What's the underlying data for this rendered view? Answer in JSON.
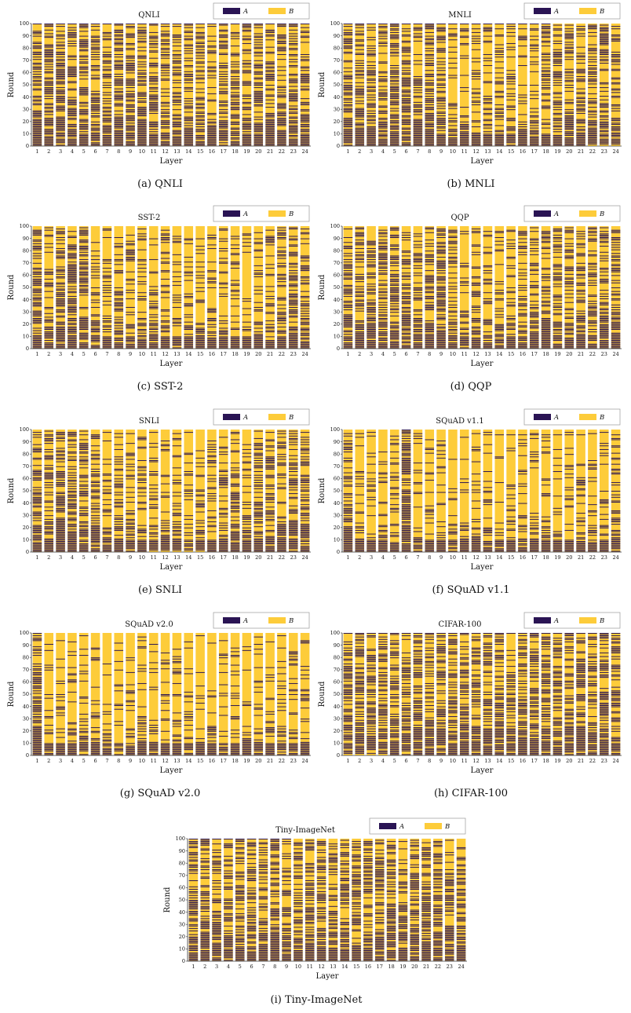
{
  "colors": {
    "A": "#2a1454",
    "B": "#fdcc3a",
    "legend_border": "#999999",
    "axis": "#333333"
  },
  "legend": {
    "a_label": "A",
    "b_label": "B"
  },
  "chart_data": [
    {
      "type": "heatmap",
      "title": "QNLI",
      "caption": "(a) QNLI",
      "xlabel": "Layer",
      "ylabel": "Round",
      "ylim": [
        0,
        100
      ],
      "yticks": [
        0,
        10,
        20,
        30,
        40,
        50,
        60,
        70,
        80,
        90,
        100
      ],
      "layers": [
        1,
        2,
        3,
        4,
        5,
        6,
        7,
        8,
        9,
        10,
        11,
        12,
        13,
        14,
        15,
        16,
        17,
        18,
        19,
        20,
        21,
        22,
        23,
        24
      ],
      "legend_position": "top-right",
      "series": [
        {
          "name": "A"
        },
        {
          "name": "B"
        }
      ],
      "a_density": [
        0.6,
        0.58,
        0.64,
        0.6,
        0.64,
        0.62,
        0.63,
        0.66,
        0.68,
        0.7,
        0.46,
        0.52,
        0.58,
        0.56,
        0.52,
        0.46,
        0.54,
        0.5,
        0.46,
        0.52,
        0.58,
        0.56,
        0.58,
        0.56
      ]
    },
    {
      "type": "heatmap",
      "title": "MNLI",
      "caption": "(b) MNLI",
      "xlabel": "Layer",
      "ylabel": "Round",
      "ylim": [
        0,
        100
      ],
      "yticks": [
        0,
        10,
        20,
        30,
        40,
        50,
        60,
        70,
        80,
        90,
        100
      ],
      "layers": [
        1,
        2,
        3,
        4,
        5,
        6,
        7,
        8,
        9,
        10,
        11,
        12,
        13,
        14,
        15,
        16,
        17,
        18,
        19,
        20,
        21,
        22,
        23,
        24
      ],
      "legend_position": "top-right",
      "series": [
        {
          "name": "A"
        },
        {
          "name": "B"
        }
      ],
      "a_density": [
        0.62,
        0.58,
        0.6,
        0.56,
        0.58,
        0.6,
        0.56,
        0.62,
        0.58,
        0.4,
        0.32,
        0.36,
        0.36,
        0.34,
        0.3,
        0.34,
        0.38,
        0.44,
        0.46,
        0.5,
        0.52,
        0.56,
        0.54,
        0.56
      ]
    },
    {
      "type": "heatmap",
      "title": "SST-2",
      "caption": "(c) SST-2",
      "xlabel": "Layer",
      "ylabel": "Round",
      "ylim": [
        0,
        100
      ],
      "yticks": [
        0,
        10,
        20,
        30,
        40,
        50,
        60,
        70,
        80,
        90,
        100
      ],
      "layers": [
        1,
        2,
        3,
        4,
        5,
        6,
        7,
        8,
        9,
        10,
        11,
        12,
        13,
        14,
        15,
        16,
        17,
        18,
        19,
        20,
        21,
        22,
        23,
        24
      ],
      "legend_position": "top-right",
      "series": [
        {
          "name": "A"
        },
        {
          "name": "B"
        }
      ],
      "a_density": [
        0.6,
        0.32,
        0.62,
        0.66,
        0.64,
        0.36,
        0.3,
        0.34,
        0.34,
        0.36,
        0.28,
        0.3,
        0.3,
        0.28,
        0.26,
        0.26,
        0.28,
        0.24,
        0.2,
        0.22,
        0.4,
        0.5,
        0.52,
        0.56
      ]
    },
    {
      "type": "heatmap",
      "title": "QQP",
      "caption": "(d) QQP",
      "xlabel": "Layer",
      "ylabel": "Round",
      "ylim": [
        0,
        100
      ],
      "yticks": [
        0,
        10,
        20,
        30,
        40,
        50,
        60,
        70,
        80,
        90,
        100
      ],
      "layers": [
        1,
        2,
        3,
        4,
        5,
        6,
        7,
        8,
        9,
        10,
        11,
        12,
        13,
        14,
        15,
        16,
        17,
        18,
        19,
        20,
        21,
        22,
        23,
        24
      ],
      "legend_position": "top-right",
      "series": [
        {
          "name": "A"
        },
        {
          "name": "B"
        }
      ],
      "a_density": [
        0.62,
        0.58,
        0.62,
        0.6,
        0.6,
        0.6,
        0.6,
        0.62,
        0.58,
        0.46,
        0.34,
        0.38,
        0.38,
        0.34,
        0.34,
        0.4,
        0.44,
        0.46,
        0.48,
        0.52,
        0.54,
        0.54,
        0.56,
        0.56
      ]
    },
    {
      "type": "heatmap",
      "title": "SNLI",
      "caption": "(e) SNLI",
      "xlabel": "Layer",
      "ylabel": "Round",
      "ylim": [
        0,
        100
      ],
      "yticks": [
        0,
        10,
        20,
        30,
        40,
        50,
        60,
        70,
        80,
        90,
        100
      ],
      "layers": [
        1,
        2,
        3,
        4,
        5,
        6,
        7,
        8,
        9,
        10,
        11,
        12,
        13,
        14,
        15,
        16,
        17,
        18,
        19,
        20,
        21,
        22,
        23,
        24
      ],
      "legend_position": "top-right",
      "series": [
        {
          "name": "A"
        },
        {
          "name": "B"
        }
      ],
      "a_density": [
        0.62,
        0.56,
        0.6,
        0.58,
        0.56,
        0.54,
        0.38,
        0.34,
        0.34,
        0.36,
        0.32,
        0.32,
        0.32,
        0.3,
        0.28,
        0.3,
        0.36,
        0.44,
        0.48,
        0.5,
        0.5,
        0.52,
        0.54,
        0.56
      ]
    },
    {
      "type": "heatmap",
      "title": "SQuAD v1.1",
      "caption": "(f) SQuAD v1.1",
      "xlabel": "Layer",
      "ylabel": "Round",
      "ylim": [
        0,
        100
      ],
      "yticks": [
        0,
        10,
        20,
        30,
        40,
        50,
        60,
        70,
        80,
        90,
        100
      ],
      "layers": [
        1,
        2,
        3,
        4,
        5,
        6,
        7,
        8,
        9,
        10,
        11,
        12,
        13,
        14,
        15,
        16,
        17,
        18,
        19,
        20,
        21,
        22,
        23,
        24
      ],
      "legend_position": "top-right",
      "series": [
        {
          "name": "A"
        },
        {
          "name": "B"
        }
      ],
      "a_density": [
        0.56,
        0.24,
        0.18,
        0.16,
        0.18,
        0.9,
        0.18,
        0.16,
        0.16,
        0.14,
        0.16,
        0.16,
        0.18,
        0.16,
        0.16,
        0.16,
        0.18,
        0.16,
        0.18,
        0.18,
        0.2,
        0.2,
        0.22,
        0.4
      ]
    },
    {
      "type": "heatmap",
      "title": "SQuAD v2.0",
      "caption": "(g) SQuAD v2.0",
      "xlabel": "Layer",
      "ylabel": "Round",
      "ylim": [
        0,
        100
      ],
      "yticks": [
        0,
        10,
        20,
        30,
        40,
        50,
        60,
        70,
        80,
        90,
        100
      ],
      "layers": [
        1,
        2,
        3,
        4,
        5,
        6,
        7,
        8,
        9,
        10,
        11,
        12,
        13,
        14,
        15,
        16,
        17,
        18,
        19,
        20,
        21,
        22,
        23,
        24
      ],
      "legend_position": "top-right",
      "series": [
        {
          "name": "A"
        },
        {
          "name": "B"
        }
      ],
      "a_density": [
        0.6,
        0.24,
        0.2,
        0.2,
        0.2,
        0.24,
        0.2,
        0.18,
        0.18,
        0.2,
        0.18,
        0.18,
        0.18,
        0.18,
        0.16,
        0.16,
        0.18,
        0.18,
        0.16,
        0.18,
        0.2,
        0.2,
        0.22,
        0.3
      ]
    },
    {
      "type": "heatmap",
      "title": "CIFAR-100",
      "caption": "(h) CIFAR-100",
      "xlabel": "Layer",
      "ylabel": "Round",
      "ylim": [
        0,
        100
      ],
      "yticks": [
        0,
        10,
        20,
        30,
        40,
        50,
        60,
        70,
        80,
        90,
        100
      ],
      "layers": [
        1,
        2,
        3,
        4,
        5,
        6,
        7,
        8,
        9,
        10,
        11,
        12,
        13,
        14,
        15,
        16,
        17,
        18,
        19,
        20,
        21,
        22,
        23,
        24
      ],
      "legend_position": "top-right",
      "series": [
        {
          "name": "A"
        },
        {
          "name": "B"
        }
      ],
      "a_density": [
        0.64,
        0.6,
        0.6,
        0.6,
        0.6,
        0.62,
        0.62,
        0.62,
        0.64,
        0.64,
        0.62,
        0.6,
        0.6,
        0.6,
        0.58,
        0.58,
        0.6,
        0.6,
        0.58,
        0.6,
        0.62,
        0.6,
        0.6,
        0.58
      ]
    },
    {
      "type": "heatmap",
      "title": "Tiny-ImageNet",
      "caption": "(i) Tiny-ImageNet",
      "xlabel": "Layer",
      "ylabel": "Round",
      "ylim": [
        0,
        100
      ],
      "yticks": [
        0,
        10,
        20,
        30,
        40,
        50,
        60,
        70,
        80,
        90,
        100
      ],
      "layers": [
        1,
        2,
        3,
        4,
        5,
        6,
        7,
        8,
        9,
        10,
        11,
        12,
        13,
        14,
        15,
        16,
        17,
        18,
        19,
        20,
        21,
        22,
        23,
        24
      ],
      "legend_position": "top-right",
      "series": [
        {
          "name": "A"
        },
        {
          "name": "B"
        }
      ],
      "a_density": [
        0.62,
        0.6,
        0.6,
        0.6,
        0.6,
        0.62,
        0.6,
        0.62,
        0.62,
        0.64,
        0.6,
        0.6,
        0.58,
        0.6,
        0.58,
        0.58,
        0.6,
        0.6,
        0.58,
        0.6,
        0.62,
        0.6,
        0.6,
        0.58
      ]
    }
  ]
}
